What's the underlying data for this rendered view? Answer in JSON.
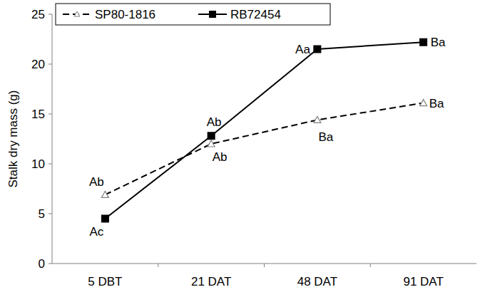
{
  "chart_data": {
    "type": "line",
    "y_label": "Stalk dry mass (g)",
    "categories": [
      "5 DBT",
      "21 DAT",
      "48 DAT",
      "91 DAT"
    ],
    "series": [
      {
        "name": "SP80-1816",
        "color": "#000000",
        "marker": "triangle",
        "line_style": "dashed",
        "values": [
          6.9,
          12.0,
          14.4,
          16.1
        ],
        "annotations": [
          "Ab",
          "Ab",
          "Ba",
          "Ba"
        ]
      },
      {
        "name": "RB72454",
        "color": "#000000",
        "marker": "square",
        "line_style": "solid",
        "values": [
          4.5,
          12.8,
          21.5,
          22.2
        ],
        "annotations": [
          "Ac",
          "Ab",
          "Aa",
          "Ba"
        ]
      }
    ],
    "ylim": [
      0,
      25
    ],
    "yticks": [
      0,
      5,
      10,
      15,
      20,
      25
    ],
    "grid": false,
    "legend": "top-left"
  }
}
